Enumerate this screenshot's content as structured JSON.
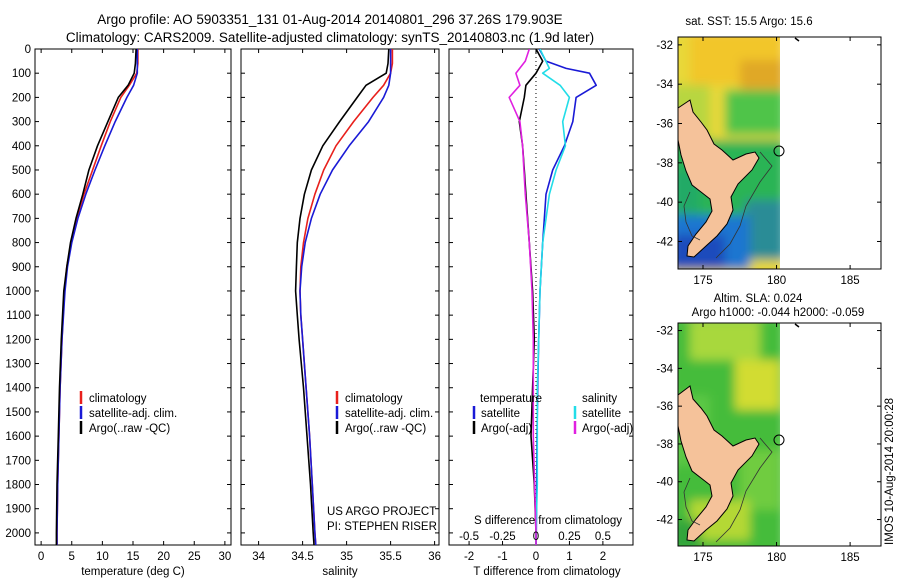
{
  "header": {
    "title_line1": "Argo profile: AO 5903351_131 01-Aug-2014 20140801_296 37.26S 179.903E",
    "title_line2": "Climatology: CARS2009. Satellite-adjusted climatology: synTS_20140803.nc (1.9d later)"
  },
  "colors": {
    "climatology": "#e8201c",
    "satellite": "#1a1ad6",
    "argo": "#000000",
    "salinity_satellite": "#22dde8",
    "salinity_argo": "#e020e0",
    "land": "#f5c29a"
  },
  "depth_ticks": [
    "0",
    "100",
    "200",
    "300",
    "400",
    "500",
    "600",
    "700",
    "800",
    "900",
    "1000",
    "1100",
    "1200",
    "1300",
    "1400",
    "1500",
    "1600",
    "1700",
    "1800",
    "1900",
    "2000"
  ],
  "chart_data": [
    {
      "type": "line",
      "panel": "temperature",
      "xlabel": "temperature (deg C)",
      "xlim": [
        -1,
        31
      ],
      "ylim": [
        2050,
        0
      ],
      "x_ticks": [
        "0",
        "5",
        "10",
        "15",
        "20",
        "25",
        "30"
      ],
      "legend": [
        "climatology",
        "satellite-adj. clim.",
        "Argo(..raw -QC)"
      ],
      "series": [
        {
          "name": "climatology",
          "depth": [
            0,
            60,
            100,
            150,
            200,
            300,
            400,
            500,
            600,
            700,
            800,
            900,
            1000,
            1200,
            1400,
            1600,
            1800,
            2000,
            2050
          ],
          "values": [
            15.8,
            15.8,
            15.6,
            14.4,
            13.0,
            11.3,
            9.8,
            8.4,
            7.0,
            5.8,
            4.9,
            4.2,
            3.8,
            3.4,
            3.1,
            2.9,
            2.7,
            2.6,
            2.6
          ]
        },
        {
          "name": "satellite-adj. clim.",
          "depth": [
            0,
            60,
            100,
            150,
            200,
            300,
            400,
            500,
            600,
            700,
            800,
            900,
            1000,
            1200,
            1400,
            1600,
            1800,
            2000,
            2050
          ],
          "values": [
            15.7,
            15.7,
            15.7,
            15.1,
            14.0,
            12.1,
            10.4,
            8.8,
            7.3,
            6.0,
            5.0,
            4.3,
            3.9,
            3.4,
            3.1,
            2.9,
            2.7,
            2.6,
            2.6
          ]
        },
        {
          "name": "Argo(..raw -QC)",
          "depth": [
            0,
            60,
            100,
            150,
            200,
            300,
            400,
            500,
            600,
            700,
            800,
            900,
            1000,
            1200,
            1400,
            1600,
            1800,
            2000,
            2050
          ],
          "values": [
            15.5,
            15.4,
            15.2,
            14.2,
            12.6,
            10.9,
            9.2,
            7.8,
            6.8,
            5.7,
            4.8,
            4.2,
            3.7,
            3.3,
            3.0,
            2.8,
            2.6,
            2.5,
            2.5
          ]
        }
      ]
    },
    {
      "type": "line",
      "panel": "salinity",
      "xlabel": "salinity",
      "xlim": [
        33.8,
        36.05
      ],
      "ylim": [
        2050,
        0
      ],
      "x_ticks": [
        "34",
        "34.5",
        "35",
        "35.5",
        "36"
      ],
      "legend": [
        "climatology",
        "satellite-adj. clim.",
        "Argo(..raw -QC)"
      ],
      "annotation": [
        "US ARGO PROJECT",
        "PI: STEPHEN RISER"
      ],
      "series": [
        {
          "name": "climatology",
          "depth": [
            0,
            60,
            100,
            150,
            200,
            300,
            400,
            500,
            600,
            700,
            800,
            900,
            1000,
            1100,
            1200,
            1400,
            1600,
            1800,
            2000,
            2050
          ],
          "values": [
            35.52,
            35.52,
            35.5,
            35.42,
            35.3,
            35.08,
            34.88,
            34.74,
            34.64,
            34.56,
            34.51,
            34.48,
            34.47,
            34.48,
            34.5,
            34.54,
            34.58,
            34.61,
            34.64,
            34.65
          ]
        },
        {
          "name": "satellite-adj. clim.",
          "depth": [
            0,
            60,
            100,
            150,
            200,
            300,
            400,
            500,
            600,
            700,
            800,
            900,
            1000,
            1100,
            1200,
            1400,
            1600,
            1800,
            2000,
            2050
          ],
          "values": [
            35.5,
            35.5,
            35.5,
            35.48,
            35.42,
            35.25,
            35.03,
            34.84,
            34.7,
            34.6,
            34.53,
            34.49,
            34.47,
            34.48,
            34.5,
            34.54,
            34.58,
            34.61,
            34.64,
            34.65
          ]
        },
        {
          "name": "Argo(..raw -QC)",
          "depth": [
            0,
            60,
            100,
            150,
            200,
            300,
            400,
            500,
            600,
            700,
            800,
            900,
            1000,
            1100,
            1200,
            1400,
            1600,
            1800,
            2000,
            2050
          ],
          "values": [
            35.48,
            35.47,
            35.45,
            35.22,
            35.12,
            34.92,
            34.73,
            34.6,
            34.52,
            34.47,
            34.44,
            34.43,
            34.42,
            34.44,
            34.46,
            34.51,
            34.55,
            34.59,
            34.62,
            34.63
          ]
        }
      ]
    },
    {
      "type": "line",
      "panel": "difference",
      "xlabel": "T difference from climatology",
      "xlabel_top": "S difference from climatology",
      "xlim": [
        -2.6,
        2.9
      ],
      "ylim": [
        2050,
        0
      ],
      "x_ticks": [
        "-2",
        "-1",
        "0",
        "1",
        "2"
      ],
      "s_ticks": [
        "-0.5",
        "-0.25",
        "0",
        "0.25",
        "0.5"
      ],
      "legend_titles": [
        "temperature",
        "salinity"
      ],
      "legend": [
        "satellite",
        "Argo(-adj)",
        "satellite",
        "Argo(-adj)"
      ],
      "series": [
        {
          "name": "satellite",
          "depth": [
            0,
            50,
            80,
            100,
            150,
            200,
            300,
            400,
            500,
            600,
            800,
            1000,
            1200,
            1400,
            1600,
            1800,
            2000,
            2050
          ],
          "values": [
            0.1,
            0.3,
            0.9,
            1.6,
            1.8,
            1.2,
            1.1,
            0.85,
            0.5,
            0.3,
            0.2,
            0.12,
            0.08,
            0.05,
            0.03,
            0.02,
            0.01,
            0.0
          ]
        },
        {
          "name": "Argo(-adj)",
          "depth": [
            0,
            50,
            100,
            150,
            200,
            300,
            400,
            500,
            600,
            800,
            1000,
            1200,
            1400,
            1600,
            1800,
            2000,
            2050
          ],
          "values": [
            0.0,
            0.2,
            0.0,
            -0.3,
            -0.35,
            -0.5,
            -0.4,
            -0.35,
            -0.3,
            -0.2,
            -0.1,
            -0.05,
            -0.1,
            -0.15,
            -0.05,
            0.0,
            0.0
          ]
        },
        {
          "name": "satellite",
          "depth": [
            0,
            80,
            100,
            150,
            200,
            300,
            400,
            500,
            600,
            800,
            1000,
            1200,
            1400,
            1600,
            1800,
            2000,
            2050
          ],
          "values": [
            0.03,
            0.1,
            0.05,
            0.18,
            0.25,
            0.2,
            0.22,
            0.15,
            0.1,
            0.05,
            0.03,
            0.02,
            0.01,
            0.01,
            0.01,
            0.0,
            0.0
          ]
        },
        {
          "name": "Argo(-adj)",
          "depth": [
            0,
            50,
            100,
            150,
            200,
            300,
            400,
            500,
            600,
            800,
            1000,
            1200,
            1400,
            1600,
            1800,
            2000,
            2050
          ],
          "values": [
            -0.05,
            -0.08,
            -0.15,
            -0.12,
            -0.2,
            -0.12,
            -0.1,
            -0.09,
            -0.08,
            -0.05,
            -0.03,
            -0.02,
            -0.02,
            -0.02,
            -0.01,
            0.0,
            0.0
          ]
        }
      ]
    }
  ],
  "maps": {
    "sst": {
      "title": "sat. SST: 15.5 Argo: 15.6",
      "lat_ticks": [
        "-32",
        "-34",
        "-36",
        "-38",
        "-40",
        "-42"
      ],
      "lon_ticks": [
        "175",
        "180",
        "185"
      ]
    },
    "sla": {
      "title_line1": "Altim. SLA: 0.024",
      "title_line2": "Argo h1000: -0.044 h2000: -0.059",
      "lat_ticks": [
        "-32",
        "-34",
        "-36",
        "-38",
        "-40",
        "-42"
      ],
      "lon_ticks": [
        "175",
        "180",
        "185"
      ]
    }
  },
  "footer": {
    "side_label": "IMOS 10-Aug-2014 20:00:28"
  }
}
